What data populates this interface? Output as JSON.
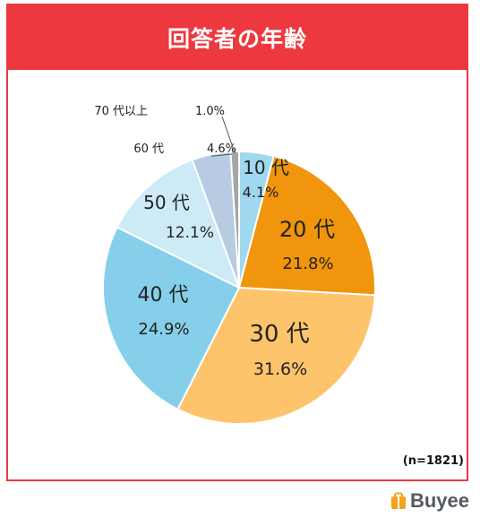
{
  "title": "回答者の年齢",
  "note": "(n=1821)",
  "brand": {
    "name": "Buyee",
    "logo_icon": "shopping-bag-icon",
    "accent": "#f4a11b"
  },
  "colors": {
    "frame": "#ee3840",
    "title_text": "#ffffff"
  },
  "chart_data": {
    "type": "pie",
    "title": "回答者の年齢",
    "start": "12 o'clock",
    "direction": "clockwise",
    "slices": [
      {
        "label": "10 代",
        "value": 4.1,
        "display": "4.1%",
        "color": "#9fd8ef"
      },
      {
        "label": "20 代",
        "value": 21.8,
        "display": "21.8%",
        "color": "#f0950c"
      },
      {
        "label": "30 代",
        "value": 31.6,
        "display": "31.6%",
        "color": "#fdc46c"
      },
      {
        "label": "40 代",
        "value": 24.9,
        "display": "24.9%",
        "color": "#86cfea"
      },
      {
        "label": "50 代",
        "value": 12.1,
        "display": "12.1%",
        "color": "#cdeaf7"
      },
      {
        "label": "60 代",
        "value": 4.6,
        "display": "4.6%",
        "color": "#b7cbe3"
      },
      {
        "label": "70 代以上",
        "value": 1.0,
        "display": "1.0%",
        "color": "#a5a5a5"
      }
    ]
  }
}
